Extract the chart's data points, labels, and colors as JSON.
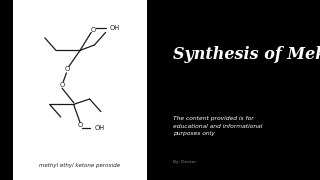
{
  "left_bg": "#ffffff",
  "right_bg": "#000000",
  "left_border_bg": "#1a1a1a",
  "title": "Synthesis of Mekp",
  "title_color": "#ffffff",
  "subtitle_line1": "The content provided is for",
  "subtitle_line2": "educational and informational",
  "subtitle_line3": "purposes only",
  "subtitle_color": "#ffffff",
  "caption": "By: Denter",
  "caption_color": "#888888",
  "molecule_label": "methyl ethyl ketone peroxide",
  "molecule_label_color": "#222222"
}
